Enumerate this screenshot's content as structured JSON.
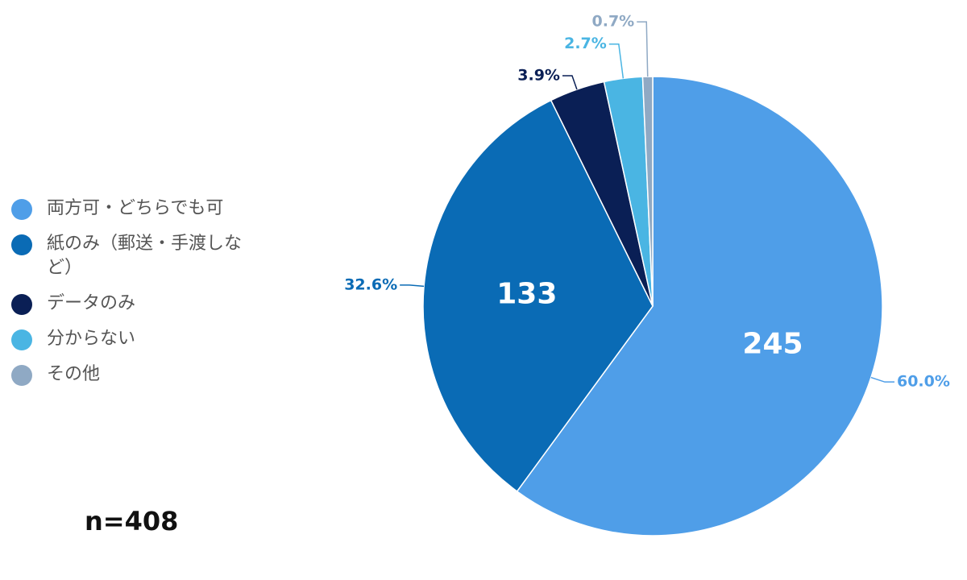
{
  "chart_data": {
    "type": "pie",
    "categories": [
      "両方可・どちらでも可",
      "紙のみ（郵送・手渡しなど）",
      "データのみ",
      "分からない",
      "その他"
    ],
    "values": [
      60.0,
      32.6,
      3.9,
      2.7,
      0.7
    ],
    "value_labels": [
      "60.0%",
      "32.6%",
      "3.9%",
      "2.7%",
      "0.7%"
    ],
    "counts": [
      245,
      133,
      null,
      null,
      null
    ],
    "colors": [
      "#4f9ee8",
      "#0a6bb5",
      "#0a1f55",
      "#4ab5e3",
      "#8fa9c4"
    ],
    "note": "n=408",
    "legend": "left"
  }
}
